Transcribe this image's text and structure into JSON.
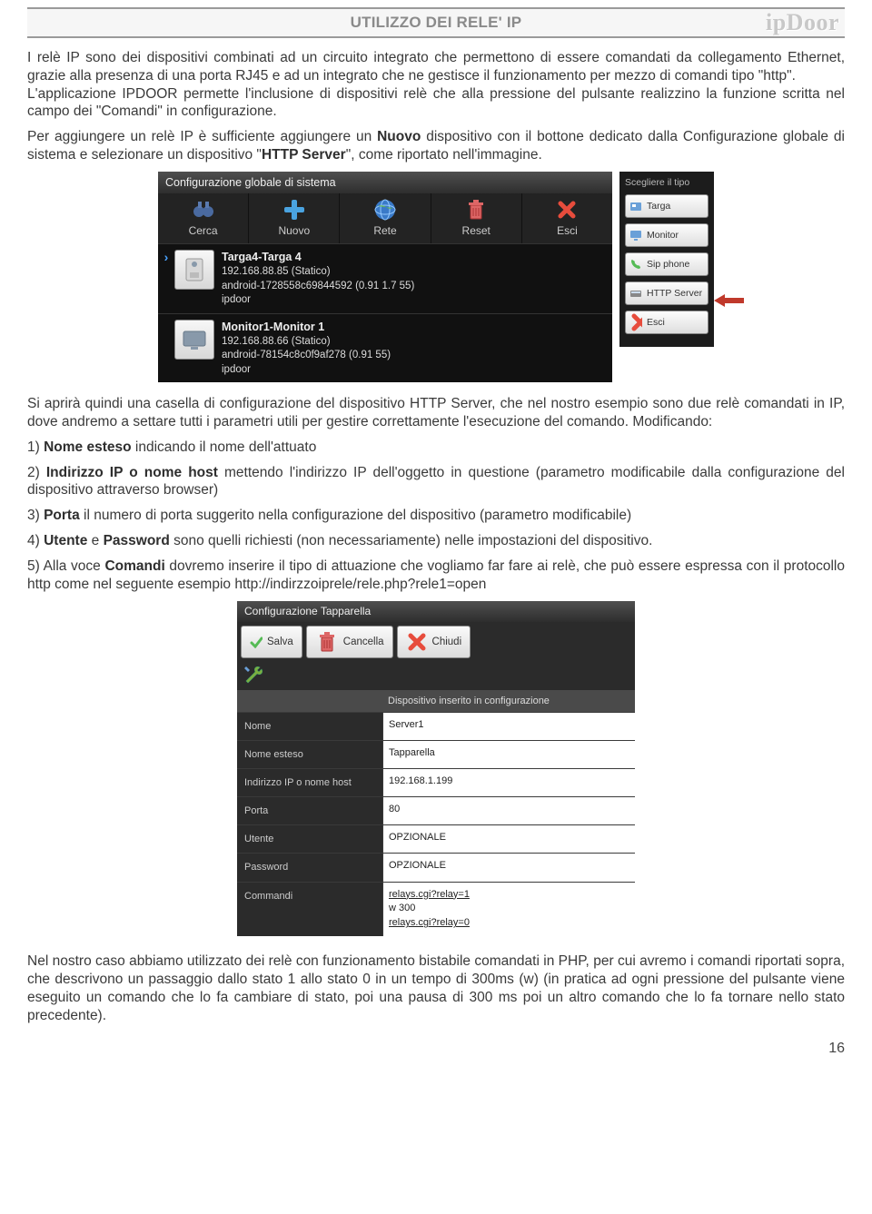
{
  "header": {
    "title": "UTILIZZO DEI RELE' IP",
    "brand": "ipDoor"
  },
  "para1": "I relè IP sono dei dispositivi combinati ad un circuito integrato che permettono di essere comandati da collegamento Ethernet, grazie alla presenza di una porta RJ45 e ad un integrato che ne gestisce il funzionamento per mezzo di comandi tipo \"http\".",
  "para1b": "L'applicazione IPDOOR permette l'inclusione di dispositivi relè che alla pressione del pulsante realizzino la funzione scritta nel campo dei \"Comandi\" in configurazione.",
  "para2a": "Per aggiungere un relè IP è sufficiente aggiungere un ",
  "para2_bold1": "Nuovo",
  "para2b": " dispositivo con il bottone dedicato dalla Configurazione globale di sistema e selezionare un dispositivo \"",
  "para2_bold2": "HTTP Server",
  "para2c": "\", come riportato nell'immagine.",
  "sys": {
    "title": "Configurazione globale di sistema",
    "toolbar": [
      {
        "label": "Cerca",
        "icon": "binoc"
      },
      {
        "label": "Nuovo",
        "icon": "plus"
      },
      {
        "label": "Rete",
        "icon": "globe"
      },
      {
        "label": "Reset",
        "icon": "trash"
      },
      {
        "label": "Esci",
        "icon": "x"
      }
    ],
    "devices": [
      {
        "name": "Targa4-Targa 4",
        "ip": "192.168.88.85 (Statico)",
        "uid": "android-1728558c69844592  (0.91 1.7 55)",
        "user": "ipdoor"
      },
      {
        "name": "Monitor1-Monitor 1",
        "ip": "192.168.88.66 (Statico)",
        "uid": "android-78154c8c0f9af278  (0.91 55)",
        "user": "ipdoor"
      }
    ]
  },
  "typepanel": {
    "title": "Scegliere il tipo",
    "items": [
      {
        "label": "Targa",
        "icon": "card"
      },
      {
        "label": "Monitor",
        "icon": "monitor"
      },
      {
        "label": "Sip phone",
        "icon": "phone"
      },
      {
        "label": "HTTP Server",
        "icon": "http"
      },
      {
        "label": "Esci",
        "icon": "x"
      }
    ]
  },
  "para3": "Si aprirà quindi una casella di configurazione del dispositivo HTTP Server, che nel nostro esempio sono due relè comandati in IP, dove andremo a settare tutti i parametri utili per gestire correttamente l'esecuzione del comando. Modificando:",
  "list": {
    "l1a": "1) ",
    "l1b": "Nome esteso",
    "l1c": " indicando il nome dell'attuato",
    "l2a": "2) ",
    "l2b": "Indirizzo IP o nome host",
    "l2c": " mettendo l'indirizzo IP dell'oggetto in questione (parametro modificabile dalla configurazione del dispositivo attraverso browser)",
    "l3a": "3) ",
    "l3b": "Porta",
    "l3c": " il numero di porta suggerito nella configurazione del dispositivo (parametro modificabile)",
    "l4a": "4) ",
    "l4b": "Utente",
    "l4c": " e ",
    "l4d": "Password",
    "l4e": " sono quelli richiesti (non necessariamente) nelle impostazioni del dispositivo.",
    "l5a": "5) Alla voce ",
    "l5b": "Comandi",
    "l5c": " dovremo inserire il tipo di attuazione che vogliamo far fare ai relè, che può essere espressa con il protocollo http come nel seguente esempio http://indirzzoiprele/rele.php?rele1=open"
  },
  "form": {
    "title": "Configurazione Tapparella",
    "actions": [
      {
        "label": "Salva",
        "icon": "check"
      },
      {
        "label": "Cancella",
        "icon": "trash"
      },
      {
        "label": "Chiudi",
        "icon": "x"
      }
    ],
    "status": "Dispositivo inserito in configurazione",
    "rows": [
      {
        "label": "Nome",
        "value": "Server1"
      },
      {
        "label": "Nome esteso",
        "value": "Tapparella"
      },
      {
        "label": "Indirizzo IP o nome host",
        "value": "192.168.1.199"
      },
      {
        "label": "Porta",
        "value": "80"
      },
      {
        "label": "Utente",
        "value": "OPZIONALE"
      },
      {
        "label": "Password",
        "value": "OPZIONALE"
      },
      {
        "label": "Commandi",
        "value": "relays.cgi?relay=1\nw 300\nrelays.cgi?relay=0"
      }
    ]
  },
  "para4": "Nel nostro caso abbiamo utilizzato dei relè con funzionamento bistabile comandati in PHP, per cui avremo i comandi riportati sopra, che descrivono un passaggio dallo stato 1 allo stato 0 in un tempo di 300ms (w) (in pratica ad ogni pressione del pulsante viene eseguito un comando che lo fa cambiare di stato, poi una pausa di 300 ms poi un altro comando che lo fa tornare nello stato precedente).",
  "pagenum": "16",
  "colors": {
    "headerBorder": "#9a9a9a",
    "brand": "#c8c8c8",
    "text": "#3a3a3a",
    "arrow": "#c0392b"
  }
}
